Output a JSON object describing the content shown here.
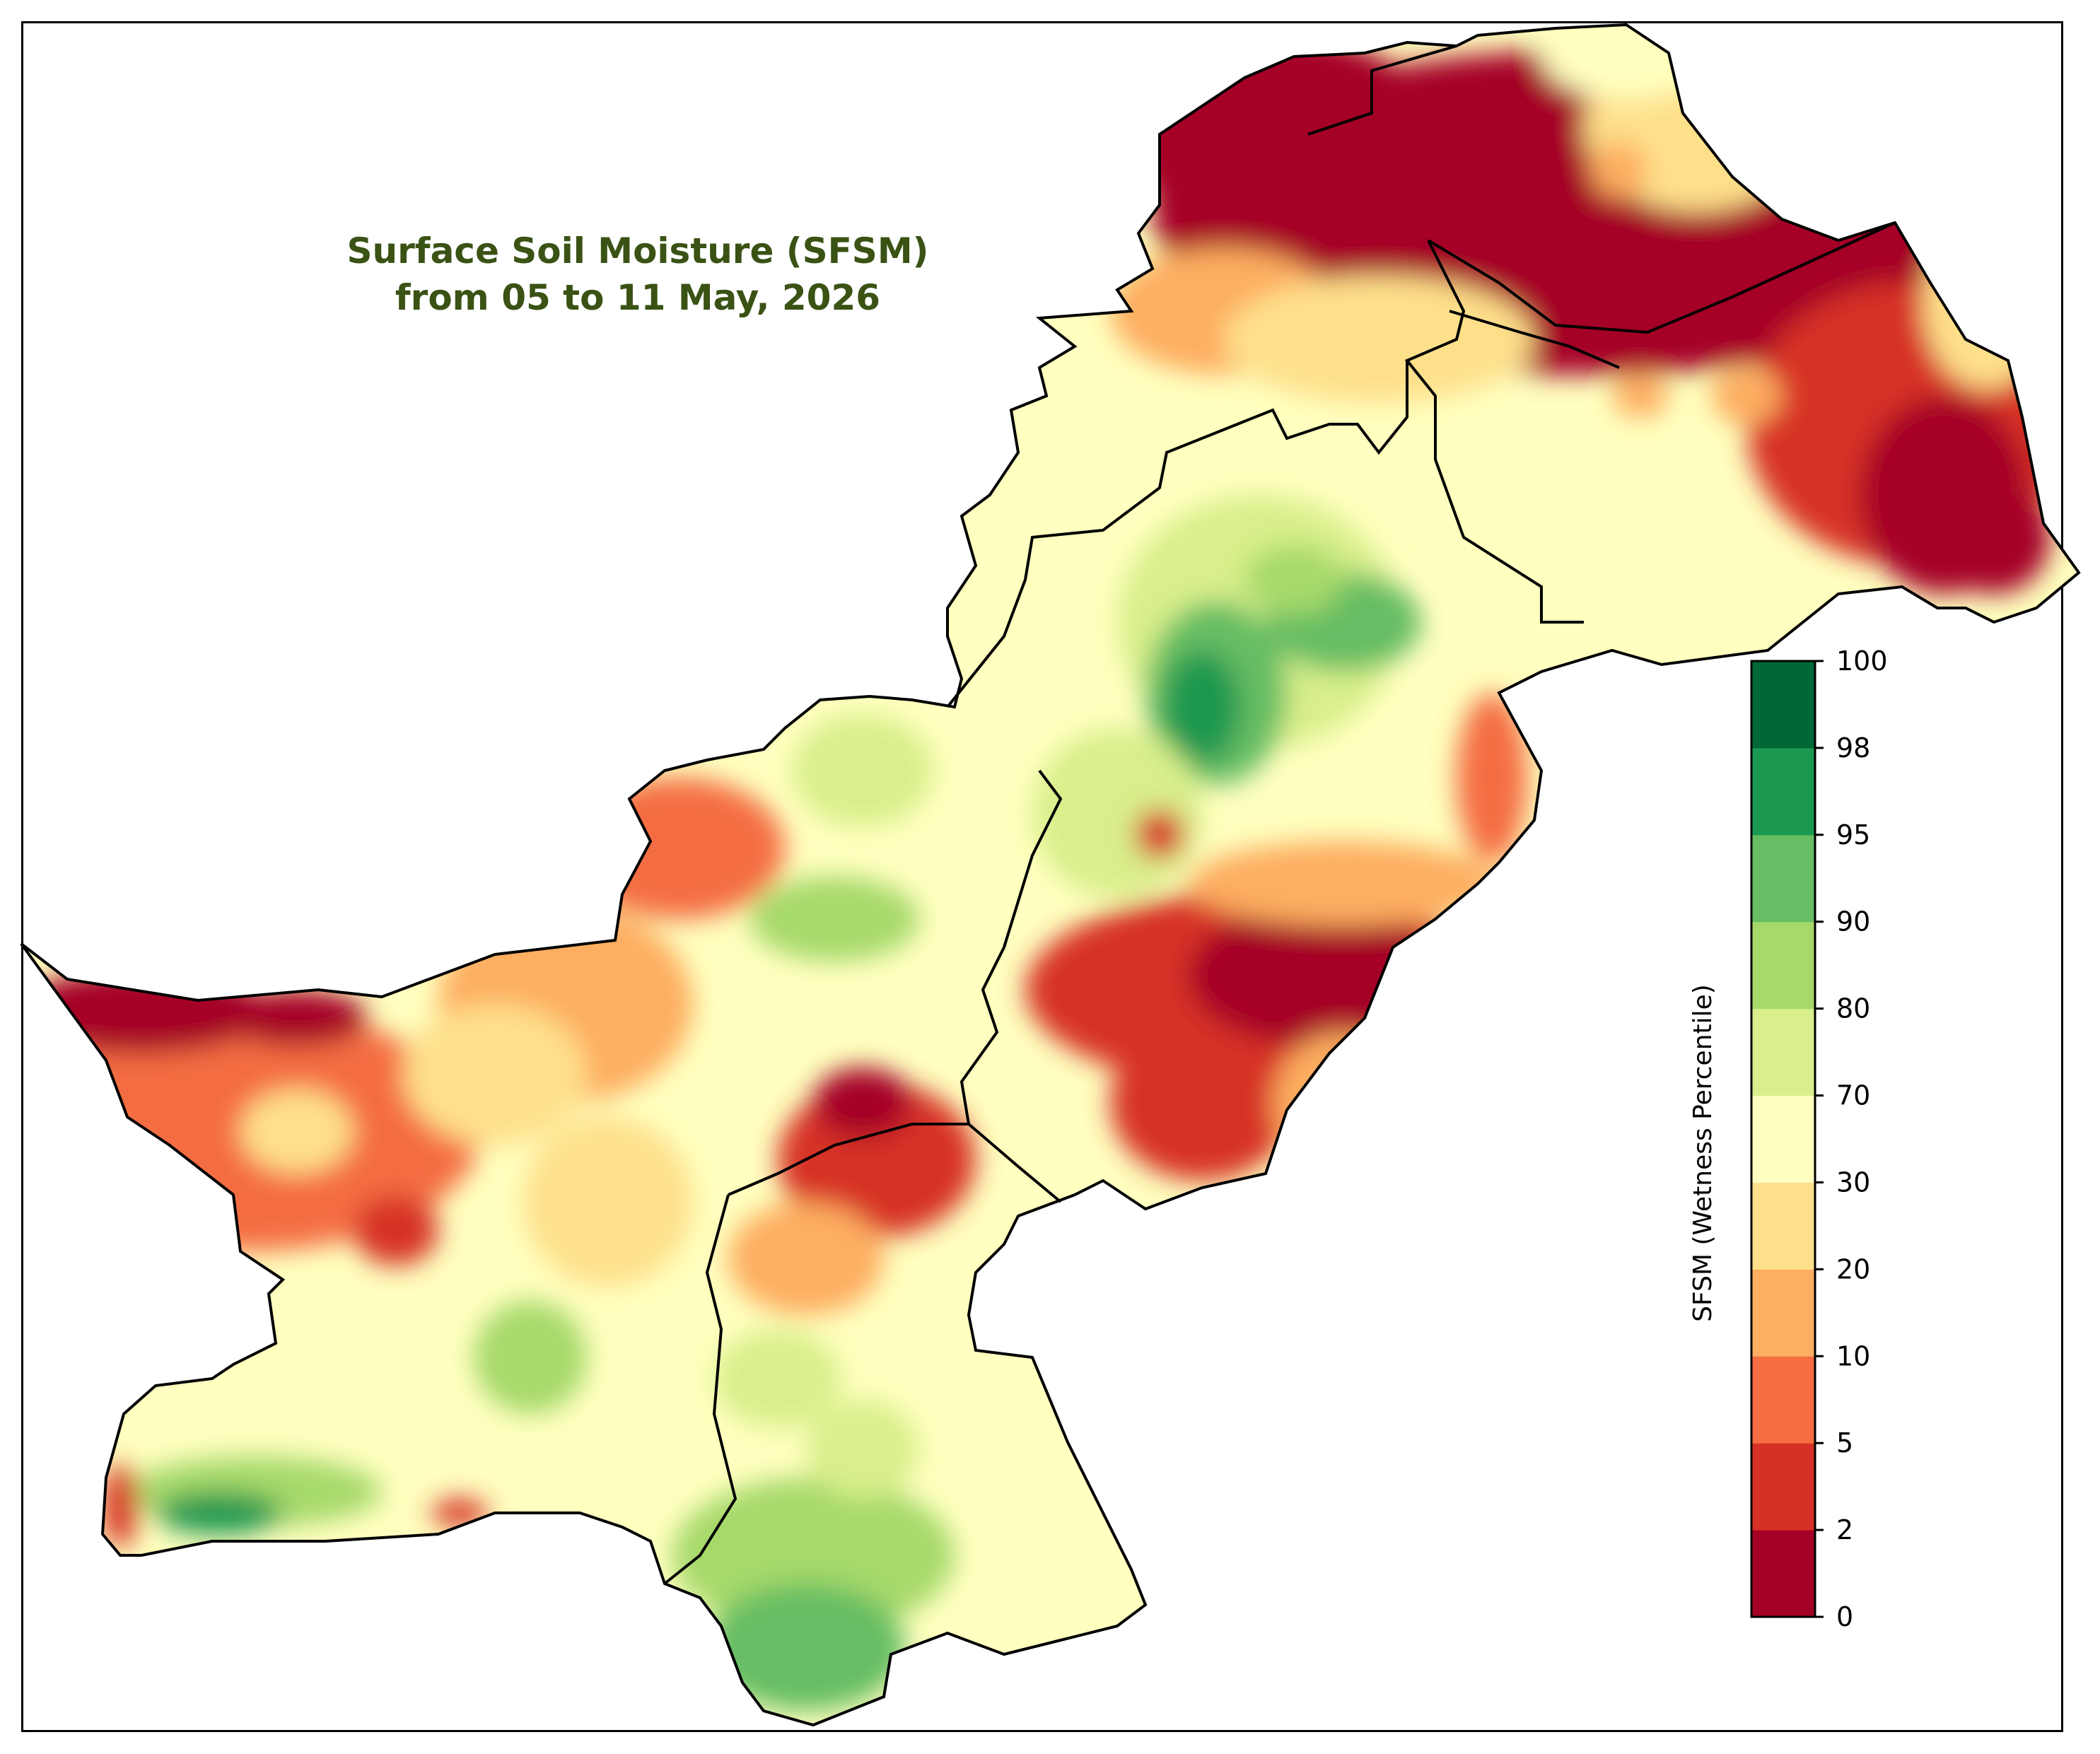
{
  "map": {
    "title_line1": "Surface Soil Moisture (SFSM)",
    "title_line2": "from 05 to 11 May, 2026",
    "region": "Pakistan"
  },
  "colorbar": {
    "label": "SFSM (Wetness Percentile)",
    "ticks": [
      "0",
      "2",
      "5",
      "10",
      "20",
      "30",
      "70",
      "80",
      "90",
      "95",
      "98",
      "100"
    ],
    "colors": [
      "#a50026",
      "#d73027",
      "#f46d43",
      "#fdae61",
      "#fee08b",
      "#ffffbf",
      "#d9ef8b",
      "#a6d96a",
      "#66bd63",
      "#1a9850",
      "#006837"
    ]
  },
  "legend_colors": {
    "very_dry": "#a50026",
    "dry": "#d73027",
    "moderately_dry": "#f46d43",
    "slightly_dry": "#fdae61",
    "near_dry": "#fee08b",
    "normal": "#ffffbf",
    "slightly_wet": "#d9ef8b",
    "wet": "#a6d96a",
    "very_wet": "#66bd63",
    "extremely_wet": "#1a9850",
    "exceptionally_wet": "#006837"
  }
}
